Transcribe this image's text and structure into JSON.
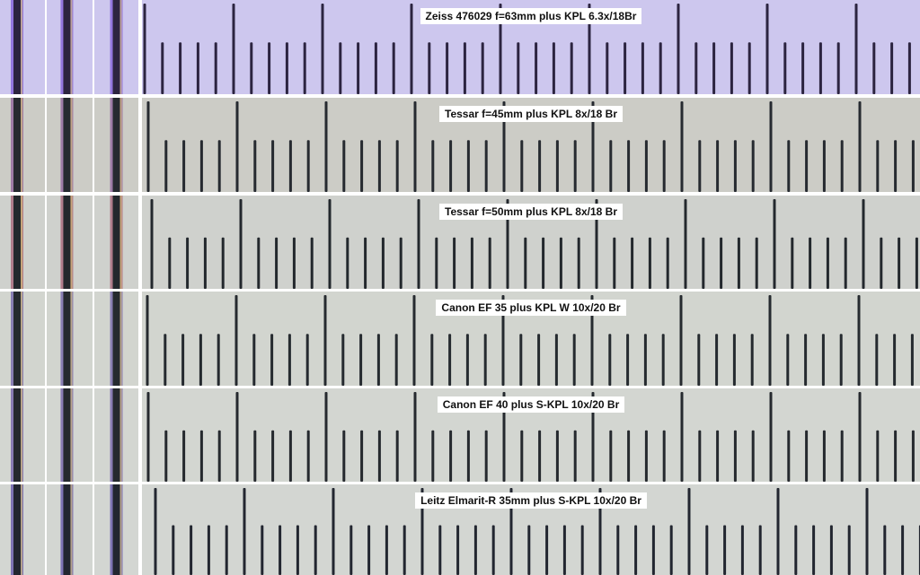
{
  "strips": [
    {
      "label": "Zeiss 476029 f=63mm plus KPL 6.3x/18Br",
      "background": "#cdc7ee",
      "edge_fringe": "#7a55d8",
      "line_color": "#2c2440"
    },
    {
      "label": "Tessar f=45mm plus KPL 8x/18 Br",
      "background": "#ccccc6",
      "edge_fringe": "#8a5a9a",
      "line_color": "#262a30"
    },
    {
      "label": "Tessar f=50mm plus KPL 8x/18 Br",
      "background": "#cfd1cd",
      "edge_fringe": "#a25a70",
      "line_color": "#23282d"
    },
    {
      "label": "Canon EF 35 plus KPL W 10x/20 Br",
      "background": "#d2d5cf",
      "edge_fringe": "#6a5aa8",
      "line_color": "#252a2f"
    },
    {
      "label": "Canon EF 40 plus S-KPL 10x/20 Br",
      "background": "#d3d6d1",
      "edge_fringe": "#6a55a8",
      "line_color": "#25292e"
    },
    {
      "label": "Leitz Elmarit-R 35mm plus S-KPL 10x/20 Br",
      "background": "#d3d6d2",
      "edge_fringe": "#5a4aa8",
      "line_color": "#222630"
    }
  ]
}
